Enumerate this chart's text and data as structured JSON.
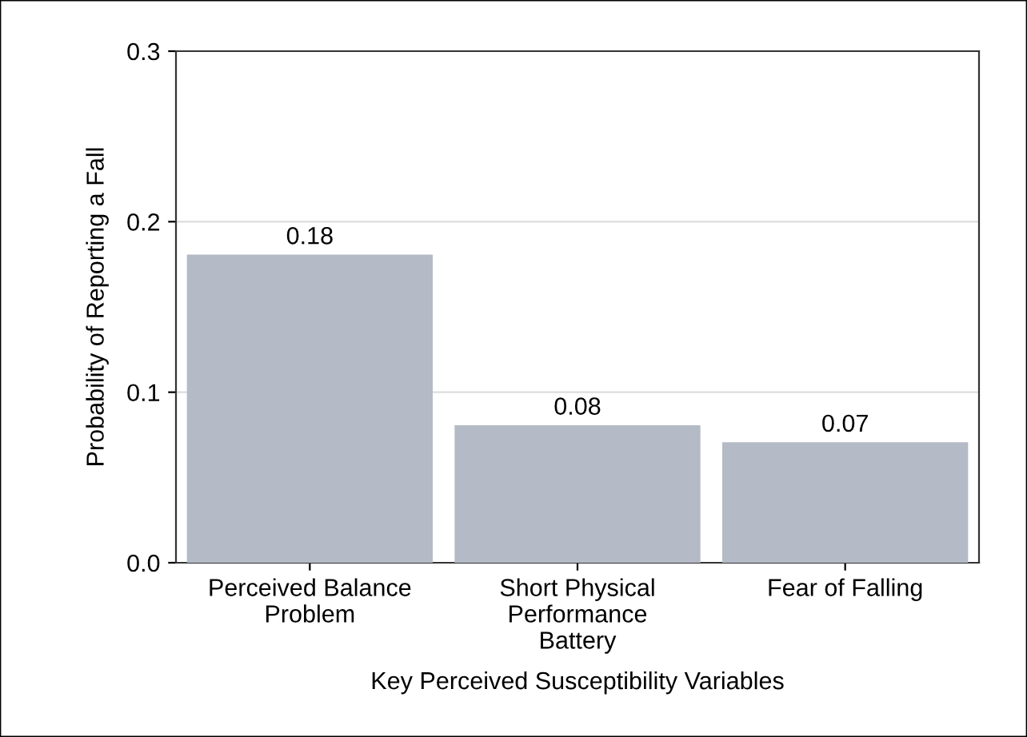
{
  "chart_data": {
    "type": "bar",
    "xlabel": "Key Perceived Susceptibility Variables",
    "ylabel": "Probability of Reporting a Fall",
    "categories": [
      "Perceived Balance\nProblem",
      "Short Physical\nPerformance\nBattery",
      "Fear of Falling"
    ],
    "values": [
      0.18,
      0.08,
      0.07
    ],
    "color": "#b4bac6",
    "data_labels": true,
    "ylim": [
      0,
      0.3
    ],
    "yticks": [
      {
        "value": 0,
        "label": "0.0"
      },
      {
        "value": 0.1,
        "label": "0.1"
      },
      {
        "value": 0.2,
        "label": "0.2"
      },
      {
        "value": 0.3,
        "label": "0.3"
      }
    ],
    "grid": "y",
    "legend": false
  }
}
